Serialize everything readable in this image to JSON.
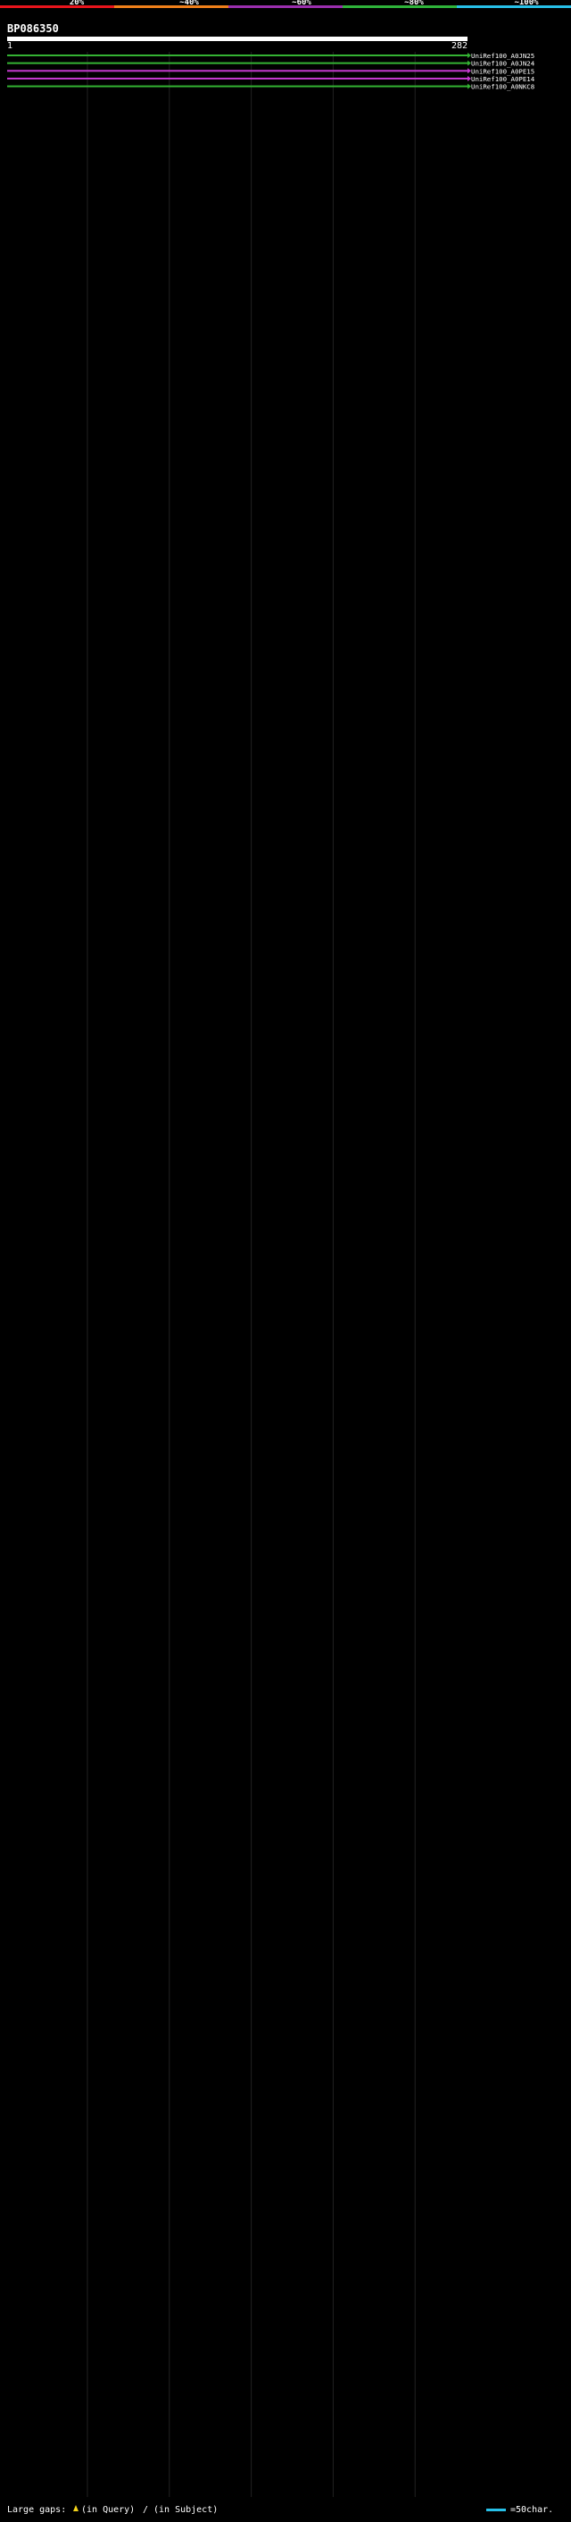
{
  "chart_data": {
    "type": "alignment",
    "title": "BP086350",
    "query_start": "1",
    "query_end": "282",
    "query_length": 282,
    "identity_scale": {
      "ticks": [
        "20%",
        "~40%",
        "~60%",
        "~80%",
        "~100%"
      ],
      "colors": [
        "#e8141c",
        "#ef7f1a",
        "#9b2fae",
        "#2fb33a",
        "#27c0e8"
      ]
    },
    "series_colors": {
      "cyan": "#27c0e8",
      "green": "#34b233",
      "magenta": "#c63ad0"
    },
    "hits": [
      {
        "id": "UniRef100_A0JN25",
        "start": 1,
        "end": 282,
        "color": "green"
      },
      {
        "id": "UniRef100_A0JN24",
        "start": 1,
        "end": 282,
        "color": "green"
      },
      {
        "id": "UniRef100_A0PE15",
        "start": 1,
        "end": 282,
        "color": "magenta"
      },
      {
        "id": "UniRef100_A0PE14",
        "start": 1,
        "end": 282,
        "color": "magenta"
      },
      {
        "id": "UniRef100_A0NKC8",
        "start": 1,
        "end": 282,
        "color": "green"
      }
    ]
  },
  "legend": {
    "gaps_label": "Large gaps:",
    "gaps_query": "(in Query)",
    "gaps_subject": "(in Subject)",
    "scale_label": "=50char."
  }
}
